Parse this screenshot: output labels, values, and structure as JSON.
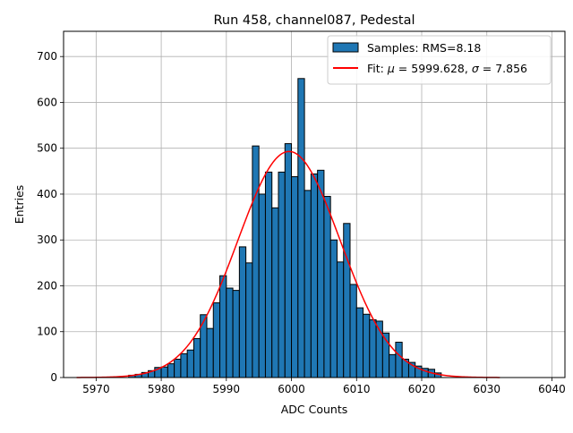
{
  "chart_data": {
    "type": "bar",
    "title": "Run 458, channel087, Pedestal",
    "xlabel": "ADC Counts",
    "ylabel": "Entries",
    "xlim": [
      5965,
      6042
    ],
    "ylim": [
      0,
      755
    ],
    "xticks": [
      5970,
      5980,
      5990,
      6000,
      6010,
      6020,
      6030,
      6040
    ],
    "yticks": [
      0,
      100,
      200,
      300,
      400,
      500,
      600,
      700
    ],
    "grid": true,
    "legend_position": "top-right",
    "colors": {
      "bar_fill": "#1f77b4",
      "bar_edge": "#000000",
      "fit_line": "#ff0000",
      "grid": "#b0b0b0"
    },
    "series": [
      {
        "name": "Samples: RMS=8.18",
        "kind": "histogram",
        "bin_width": 1,
        "bin_starts": [
          5975,
          5976,
          5977,
          5978,
          5979,
          5980,
          5981,
          5982,
          5983,
          5984,
          5985,
          5986,
          5987,
          5988,
          5989,
          5990,
          5991,
          5992,
          5993,
          5994,
          5995,
          5996,
          5997,
          5998,
          5999,
          6000,
          6001,
          6002,
          6003,
          6004,
          6005,
          6006,
          6007,
          6008,
          6009,
          6010,
          6011,
          6012,
          6013,
          6014,
          6015,
          6016,
          6017,
          6018,
          6019,
          6020,
          6021,
          6022
        ],
        "values": [
          5,
          7,
          11,
          15,
          22,
          23,
          30,
          40,
          52,
          60,
          85,
          137,
          107,
          163,
          222,
          195,
          190,
          285,
          250,
          505,
          400,
          448,
          370,
          448,
          510,
          438,
          652,
          408,
          444,
          452,
          395,
          300,
          252,
          336,
          203,
          152,
          138,
          126,
          123,
          97,
          50,
          77,
          40,
          33,
          25,
          20,
          18,
          10
        ]
      },
      {
        "name_prefix": "Fit:",
        "name_mu_symbol": "μ",
        "name_mu_value": "= 5999.628,",
        "name_sigma_symbol": "σ",
        "name_sigma_value": "= 7.856",
        "kind": "gaussian_fit",
        "mu": 5999.628,
        "sigma": 7.856,
        "amplitude": 493,
        "x_range": [
          5967,
          6032
        ]
      }
    ]
  }
}
